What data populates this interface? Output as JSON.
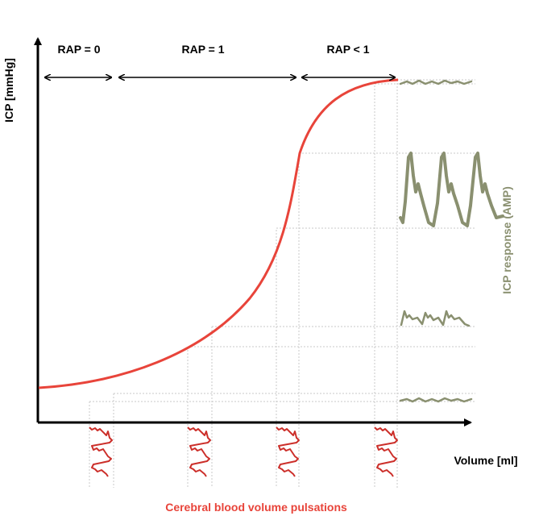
{
  "axes": {
    "y_label": "ICP [mmHg]",
    "x_label": "Volume [ml]",
    "right_label": "ICP response (AMP)",
    "bottom_label": "Cerebral blood volume pulsations"
  },
  "zones": [
    {
      "label": "RAP = 0"
    },
    {
      "label": "RAP = 1"
    },
    {
      "label": "RAP < 1"
    }
  ],
  "colors": {
    "curve": "#e8443a",
    "pulse_input": "#cc2f2a",
    "response": "#8a9070",
    "axis": "#000000",
    "grid": "#c8c8c8"
  }
}
